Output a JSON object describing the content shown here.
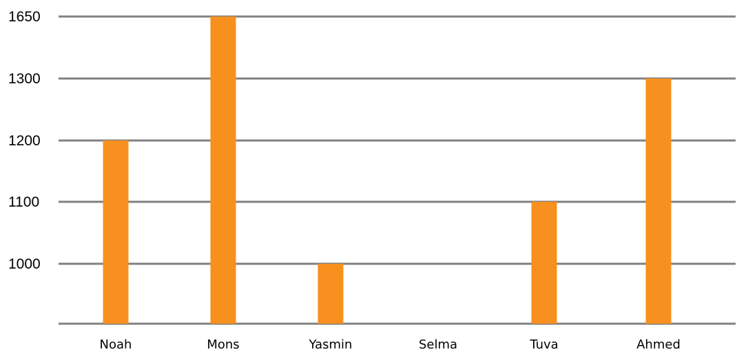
{
  "chart_data": {
    "type": "bar",
    "categories": [
      "Noah",
      "Mons",
      "Yasmin",
      "Selma",
      "Tuva",
      "Ahmed"
    ],
    "values": [
      1200,
      1650,
      1000,
      null,
      1100,
      1300
    ],
    "title": "",
    "xlabel": "",
    "ylabel": "",
    "y_ticks": [
      "1650",
      "1300",
      "1200",
      "1100",
      "1000"
    ],
    "grid": true,
    "legend": "none",
    "bar_color": "#F7901E",
    "grid_color": "#808080"
  }
}
